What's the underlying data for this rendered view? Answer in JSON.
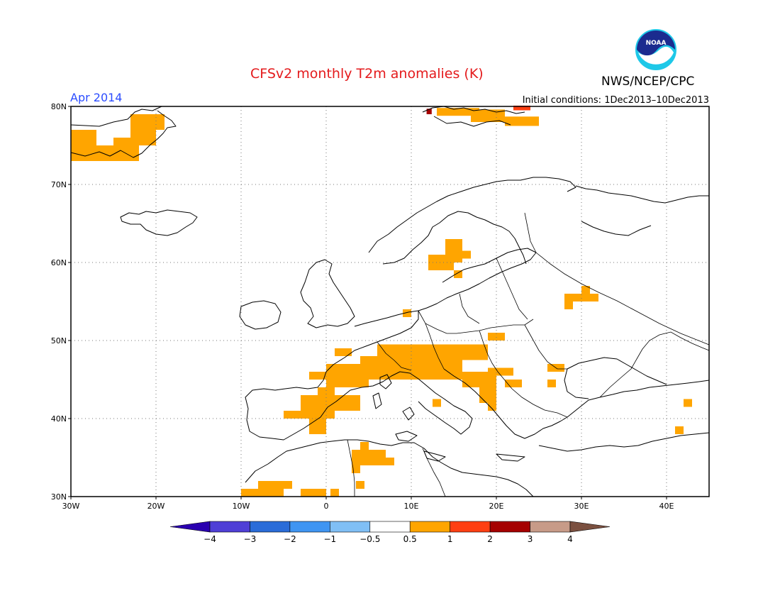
{
  "title": "CFSv2 monthly T2m anomalies (K)",
  "month": "Apr 2014",
  "initial_conditions": "Initial conditions: 1Dec2013–10Dec2013",
  "agency": "NWS/NCEP/CPC",
  "logo_text": "NOAA",
  "map": {
    "lon_range": [
      -30,
      45
    ],
    "lat_range": [
      30,
      80
    ],
    "lon_ticks": [
      {
        "value": -30,
        "label": "30W"
      },
      {
        "value": -20,
        "label": "20W"
      },
      {
        "value": -10,
        "label": "10W"
      },
      {
        "value": 0,
        "label": "0"
      },
      {
        "value": 10,
        "label": "10E"
      },
      {
        "value": 20,
        "label": "20E"
      },
      {
        "value": 30,
        "label": "30E"
      },
      {
        "value": 40,
        "label": "40E"
      }
    ],
    "lat_ticks": [
      {
        "value": 30,
        "label": "30N"
      },
      {
        "value": 40,
        "label": "40N"
      },
      {
        "value": 50,
        "label": "50N"
      },
      {
        "value": 60,
        "label": "60N"
      },
      {
        "value": 70,
        "label": "70N"
      },
      {
        "value": 80,
        "label": "80N"
      }
    ],
    "anomaly_cells": [
      {
        "lon": -30,
        "lat": 75,
        "w": 3,
        "h": 2,
        "level": 1
      },
      {
        "lon": -30,
        "lat": 73,
        "w": 7,
        "h": 2,
        "level": 1
      },
      {
        "lon": -25,
        "lat": 73,
        "w": 3,
        "h": 3,
        "level": 1
      },
      {
        "lon": -23,
        "lat": 75,
        "w": 3,
        "h": 4,
        "level": 1
      },
      {
        "lon": -22,
        "lat": 77,
        "w": 3,
        "h": 2,
        "level": 1
      },
      {
        "lon": 13,
        "lat": 78.8,
        "w": 5,
        "h": 1,
        "level": 1
      },
      {
        "lon": 17,
        "lat": 78,
        "w": 4,
        "h": 1.6,
        "level": 1
      },
      {
        "lon": 21,
        "lat": 77.5,
        "w": 4,
        "h": 1.2,
        "level": 1
      },
      {
        "lon": 22,
        "lat": 79.5,
        "w": 2,
        "h": 0.6,
        "level": 2
      },
      {
        "lon": 11.8,
        "lat": 79,
        "w": 0.6,
        "h": 0.7,
        "level": 3
      },
      {
        "lon": 12,
        "lat": 59,
        "w": 3,
        "h": 2,
        "level": 1
      },
      {
        "lon": 14,
        "lat": 60,
        "w": 2,
        "h": 3,
        "level": 1
      },
      {
        "lon": 16,
        "lat": 60.5,
        "w": 1,
        "h": 1,
        "level": 1
      },
      {
        "lon": 15,
        "lat": 58,
        "w": 1,
        "h": 1,
        "level": 1
      },
      {
        "lon": 9,
        "lat": 53,
        "w": 1,
        "h": 1,
        "level": 1
      },
      {
        "lon": 28,
        "lat": 54,
        "w": 1,
        "h": 2,
        "level": 1
      },
      {
        "lon": 29,
        "lat": 55,
        "w": 3,
        "h": 1,
        "level": 1
      },
      {
        "lon": 30,
        "lat": 56,
        "w": 1,
        "h": 1,
        "level": 1
      },
      {
        "lon": 19,
        "lat": 50,
        "w": 2,
        "h": 1,
        "level": 1
      },
      {
        "lon": 6,
        "lat": 47.5,
        "w": 13,
        "h": 2,
        "level": 1
      },
      {
        "lon": 4,
        "lat": 45,
        "w": 12,
        "h": 3,
        "level": 1
      },
      {
        "lon": 0,
        "lat": 44,
        "w": 5,
        "h": 3,
        "level": 1
      },
      {
        "lon": -2,
        "lat": 45,
        "w": 2,
        "h": 1,
        "level": 1
      },
      {
        "lon": 1,
        "lat": 48,
        "w": 2,
        "h": 1,
        "level": 1
      },
      {
        "lon": 16,
        "lat": 44,
        "w": 3,
        "h": 2,
        "level": 1
      },
      {
        "lon": 18,
        "lat": 42,
        "w": 2,
        "h": 4,
        "level": 1
      },
      {
        "lon": 19,
        "lat": 45.5,
        "w": 3,
        "h": 1,
        "level": 1
      },
      {
        "lon": 21,
        "lat": 44,
        "w": 1,
        "h": 1,
        "level": 1
      },
      {
        "lon": 22,
        "lat": 44,
        "w": 1,
        "h": 1,
        "level": 1
      },
      {
        "lon": 19,
        "lat": 41,
        "w": 1,
        "h": 1,
        "level": 1
      },
      {
        "lon": 12.5,
        "lat": 41.5,
        "w": 1,
        "h": 1,
        "level": 1
      },
      {
        "lon": 26,
        "lat": 46,
        "w": 2,
        "h": 1,
        "level": 1
      },
      {
        "lon": -3,
        "lat": 41,
        "w": 2,
        "h": 2,
        "level": 1
      },
      {
        "lon": -5,
        "lat": 40,
        "w": 4,
        "h": 1,
        "level": 1
      },
      {
        "lon": -1,
        "lat": 40,
        "w": 2,
        "h": 4,
        "level": 1
      },
      {
        "lon": -2,
        "lat": 38,
        "w": 2,
        "h": 2,
        "level": 1
      },
      {
        "lon": 1,
        "lat": 41,
        "w": 3,
        "h": 2,
        "level": 1
      },
      {
        "lon": -1,
        "lat": 42,
        "w": 1,
        "h": 1,
        "level": 1
      },
      {
        "lon": 3,
        "lat": 35,
        "w": 4,
        "h": 1,
        "level": 1
      },
      {
        "lon": 3,
        "lat": 34,
        "w": 2,
        "h": 1,
        "level": 1
      },
      {
        "lon": 4,
        "lat": 36,
        "w": 1,
        "h": 1,
        "level": 1
      },
      {
        "lon": 5,
        "lat": 34,
        "w": 3,
        "h": 1,
        "level": 1
      },
      {
        "lon": 3,
        "lat": 33,
        "w": 1,
        "h": 1,
        "level": 1
      },
      {
        "lon": -8,
        "lat": 31,
        "w": 4,
        "h": 1,
        "level": 1
      },
      {
        "lon": -10,
        "lat": 30,
        "w": 5,
        "h": 1,
        "level": 1
      },
      {
        "lon": -3,
        "lat": 30,
        "w": 3,
        "h": 1,
        "level": 1
      },
      {
        "lon": 0.5,
        "lat": 30,
        "w": 1,
        "h": 1,
        "level": 1
      },
      {
        "lon": 3.5,
        "lat": 31,
        "w": 1,
        "h": 1,
        "level": 1
      },
      {
        "lon": 26,
        "lat": 44,
        "w": 1,
        "h": 1,
        "level": 1
      },
      {
        "lon": 42,
        "lat": 41.5,
        "w": 1,
        "h": 1,
        "level": 1
      },
      {
        "lon": 41,
        "lat": 38,
        "w": 1,
        "h": 1,
        "level": 1
      }
    ]
  },
  "colorbar": {
    "colors": [
      "#2a00b0",
      "#4f3fd6",
      "#2a6cd8",
      "#3f95f2",
      "#80bff5",
      "#ffffff",
      "#ffa500",
      "#ff3f12",
      "#a50000",
      "#c79b88",
      "#7b5040"
    ],
    "tick_labels": [
      "−4",
      "−3",
      "−2",
      "−1",
      "−0.5",
      "0.5",
      "1",
      "2",
      "3",
      "4"
    ]
  }
}
